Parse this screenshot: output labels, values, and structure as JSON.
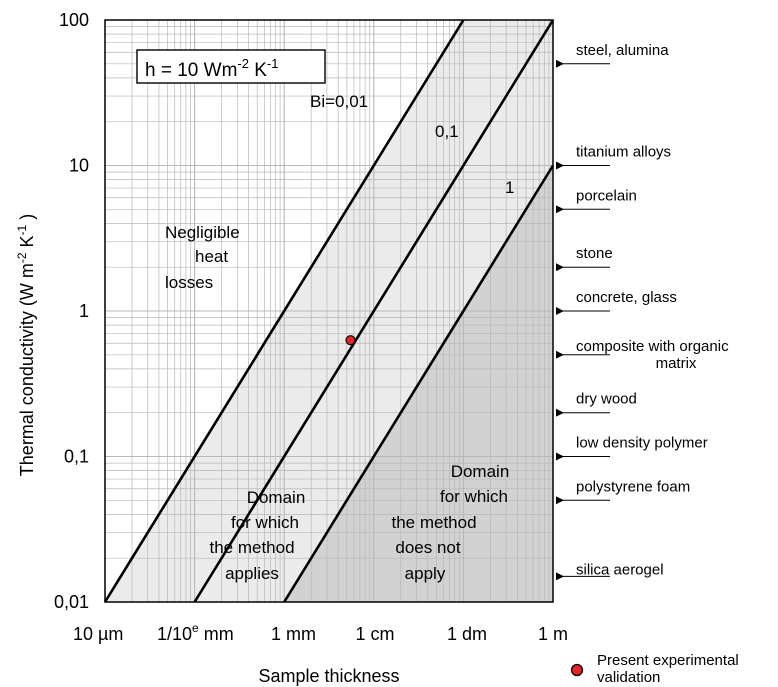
{
  "chart_data": {
    "type": "line",
    "title": "",
    "xlabel": "Sample thickness",
    "ylabel": "Thermal conductivity  (W m-2 K-1 )",
    "ylabel_parts": {
      "pre": "Thermal conductivity  (W m",
      "exp1": "-2",
      "mid": " K",
      "exp2": "-1",
      "post": " )"
    },
    "x_scale": "log",
    "y_scale": "log",
    "xlim_m": [
      1e-05,
      1
    ],
    "ylim": [
      0.01,
      100
    ],
    "grid": true,
    "x_ticks": [
      {
        "value": 1e-05,
        "label": "10 µm"
      },
      {
        "value": 0.0001,
        "label": "1/10",
        "exp": "e",
        "label_post": " mm"
      },
      {
        "value": 0.001,
        "label": "1 mm"
      },
      {
        "value": 0.01,
        "label": "1 cm"
      },
      {
        "value": 0.1,
        "label": "1 dm"
      },
      {
        "value": 1,
        "label": "1 m"
      }
    ],
    "y_ticks": [
      {
        "value": 100,
        "label": "100"
      },
      {
        "value": 10,
        "label": "10"
      },
      {
        "value": 1,
        "label": "1"
      },
      {
        "value": 0.1,
        "label": "0,1"
      },
      {
        "value": 0.01,
        "label": "0,01"
      }
    ],
    "heat_transfer_box": {
      "pre": "h = 10 Wm",
      "exp1": "-2",
      "mid": " K",
      "exp2": "-1"
    },
    "series": [
      {
        "name": "Bi=0,01",
        "points": [
          [
            1e-05,
            0.01
          ],
          [
            0.1,
            100
          ]
        ]
      },
      {
        "name": "0,1",
        "points": [
          [
            0.0001,
            0.01
          ],
          [
            1,
            100
          ]
        ]
      },
      {
        "name": "1",
        "points": [
          [
            0.001,
            0.01
          ],
          [
            1,
            10
          ]
        ]
      }
    ],
    "regions": [
      {
        "name": "negligible",
        "lines": [
          "Negligible",
          "heat",
          "losses"
        ]
      },
      {
        "name": "applies",
        "lines": [
          "Domain",
          "for which",
          "the method",
          "applies"
        ]
      },
      {
        "name": "not-apply",
        "lines": [
          "Domain",
          "for which",
          "the method",
          "does not",
          "apply"
        ]
      }
    ],
    "materials": [
      {
        "label": "steel, alumina",
        "k": 50
      },
      {
        "label": "titanium alloys",
        "k": 10
      },
      {
        "label": "porcelain",
        "k": 5
      },
      {
        "label": "stone",
        "k": 2
      },
      {
        "label": "concrete, glass",
        "k": 1
      },
      {
        "label": "composite with organic",
        "label2": "matrix",
        "k": 0.5
      },
      {
        "label": "dry wood",
        "k": 0.2
      },
      {
        "label": "low density polymer",
        "k": 0.1
      },
      {
        "label": "polystyrene foam",
        "k": 0.05
      },
      {
        "label": "silica aerogel",
        "k": 0.015
      }
    ],
    "experimental_point": {
      "thickness_m": 0.0055,
      "k": 0.63
    },
    "legend": {
      "label": "Present experimental",
      "label2": "validation",
      "placement": "bottom-right"
    },
    "colors": {
      "marker": "#e8242b",
      "shade_light": "#ebebeb",
      "shade_dark": "#d2d2d2",
      "grid": "#b8b8b8"
    }
  }
}
